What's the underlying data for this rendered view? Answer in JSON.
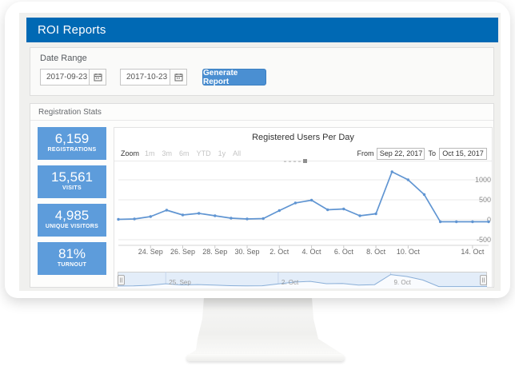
{
  "colors": {
    "header_blue": "#0069b4",
    "stat_box_blue": "#5d9cdb",
    "button_blue": "#4a8fd2",
    "series_blue": "#6095d2",
    "navigator_bg": "#e3edf9",
    "navigator_line": "#8aafd8"
  },
  "header": {
    "title": "ROI Reports"
  },
  "date_range": {
    "label": "Date Range",
    "from_value": "2017-09-23",
    "to_value": "2017-10-23",
    "generate_button": "Generate Report"
  },
  "stats_panel": {
    "title": "Registration Stats",
    "stats": [
      {
        "value": "6,159",
        "label": "REGISTRATIONS"
      },
      {
        "value": "15,561",
        "label": "VISITS"
      },
      {
        "value": "4,985",
        "label": "UNIQUE VISITORS"
      },
      {
        "value": "81%",
        "label": "TURNOUT"
      }
    ]
  },
  "chart_controls": {
    "zoom_label": "Zoom",
    "zoom_buttons": [
      "1m",
      "3m",
      "6m",
      "YTD",
      "1y",
      "All"
    ],
    "from_label": "From",
    "from_value": "Sep 22, 2017",
    "to_label": "To",
    "to_value": "Oct 15, 2017"
  },
  "chart_data": {
    "type": "line",
    "title": "Registered Users Per Day",
    "x": [
      "Sep 22",
      "Sep 23",
      "Sep 24",
      "Sep 25",
      "Sep 26",
      "Sep 27",
      "Sep 28",
      "Sep 29",
      "Sep 30",
      "Oct 1",
      "Oct 2",
      "Oct 3",
      "Oct 4",
      "Oct 5",
      "Oct 6",
      "Oct 7",
      "Oct 8",
      "Oct 9",
      "Oct 10",
      "Oct 11",
      "Oct 12",
      "Oct 13",
      "Oct 14",
      "Oct 15"
    ],
    "values": [
      10,
      20,
      80,
      240,
      120,
      160,
      100,
      40,
      20,
      30,
      230,
      420,
      490,
      250,
      270,
      100,
      150,
      1200,
      1000,
      630,
      -50,
      -50,
      -50,
      -50
    ],
    "ylabel": "",
    "xlabel": "",
    "ylim": [
      -600,
      1400
    ],
    "yticks": [
      1000,
      500,
      0,
      -500
    ],
    "xticks": [
      {
        "label": "24. Sep",
        "i": 2
      },
      {
        "label": "26. Sep",
        "i": 4
      },
      {
        "label": "28. Sep",
        "i": 6
      },
      {
        "label": "30. Sep",
        "i": 8
      },
      {
        "label": "2. Oct",
        "i": 10
      },
      {
        "label": "4. Oct",
        "i": 12
      },
      {
        "label": "6. Oct",
        "i": 14
      },
      {
        "label": "8. Oct",
        "i": 16
      },
      {
        "label": "10. Oct",
        "i": 18
      },
      {
        "label": "14. Oct",
        "i": 22
      }
    ],
    "navigator_ticks": [
      {
        "label": "25. Sep",
        "i": 3
      },
      {
        "label": "2. Oct",
        "i": 10
      },
      {
        "label": "9. Oct",
        "i": 17
      }
    ],
    "grid": true,
    "legend": false
  }
}
